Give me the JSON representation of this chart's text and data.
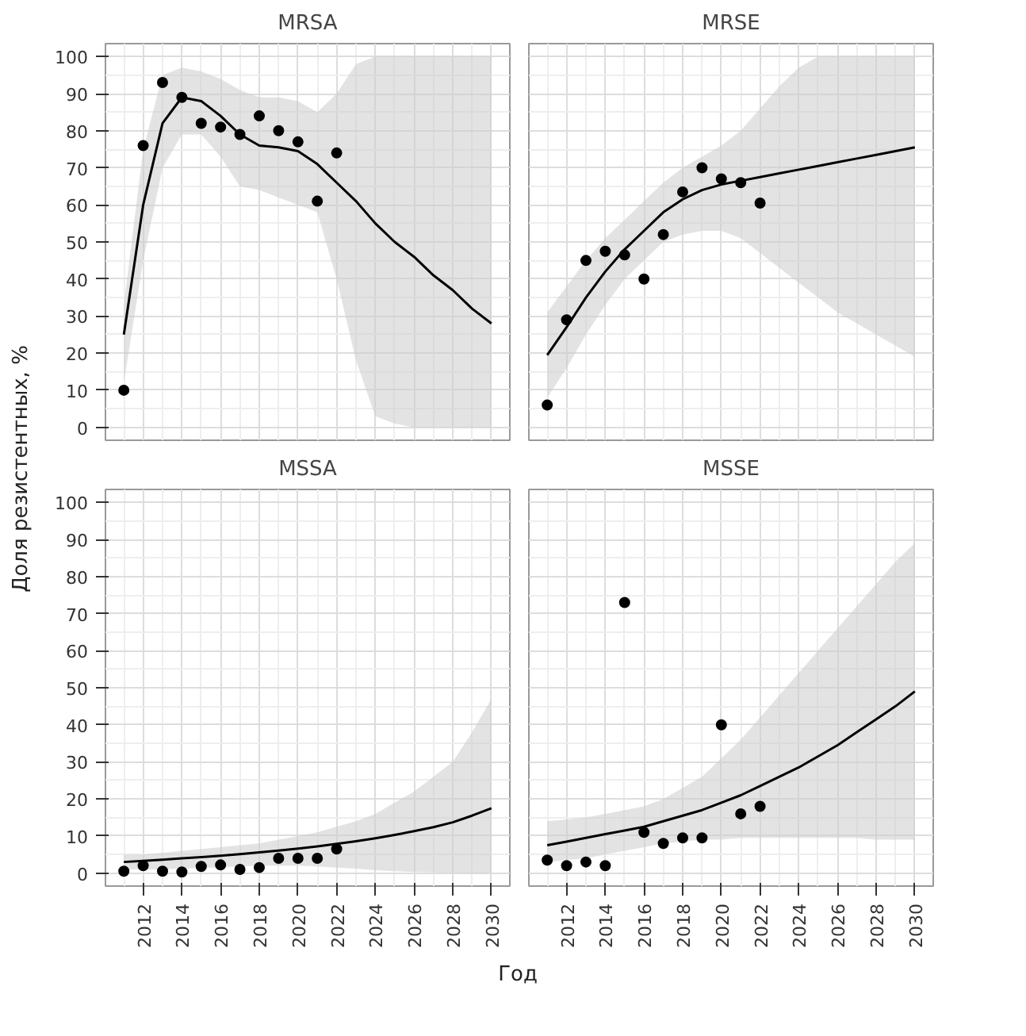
{
  "chart_data": [
    {
      "type": "scatter",
      "title": "MRSA",
      "ylabel": "Доля резистентных, %",
      "xlim": [
        2010.05,
        2030.95
      ],
      "ylim": [
        -3.5,
        103.5
      ],
      "xticks": [
        2012,
        2014,
        2016,
        2018,
        2020,
        2022,
        2024,
        2026,
        2028,
        2030
      ],
      "yticks": [
        0,
        10,
        20,
        30,
        40,
        50,
        60,
        70,
        80,
        90,
        100
      ],
      "grid": true,
      "marker": "circle",
      "line_style": "solid",
      "tick_labels": "y",
      "series": [
        {
          "color": "#000000",
          "x": [
            2011,
            2012,
            2013,
            2014,
            2015,
            2016,
            2017,
            2018,
            2019,
            2020,
            2021,
            2022
          ],
          "values": [
            10,
            76,
            93,
            89,
            82,
            81,
            79,
            84,
            80,
            77,
            61,
            74
          ]
        },
        {
          "type": "line",
          "color": "#000000",
          "x": [
            2011,
            2012,
            2013,
            2014,
            2015,
            2016,
            2017,
            2018,
            2019,
            2020,
            2021,
            2022,
            2023,
            2024,
            2025,
            2026,
            2027,
            2028,
            2029,
            2030
          ],
          "marker": "none",
          "values": [
            25,
            60,
            82,
            89,
            88,
            84,
            79,
            76,
            75.5,
            74.5,
            71,
            66,
            61,
            55,
            50,
            46,
            41,
            37,
            32,
            28
          ],
          "lower": [
            12,
            45,
            70,
            79,
            79,
            73,
            65,
            64,
            62,
            60,
            58,
            40,
            18,
            3,
            1,
            0,
            0,
            0,
            0,
            0
          ],
          "upper": [
            33,
            75,
            95,
            97,
            96,
            94,
            91,
            89,
            89,
            88,
            85,
            90,
            98,
            100,
            100,
            100,
            100,
            100,
            100,
            100
          ]
        }
      ]
    },
    {
      "type": "scatter",
      "title": "MRSE",
      "xlim": [
        2010.05,
        2030.95
      ],
      "ylim": [
        -3.5,
        103.5
      ],
      "xticks": [
        2012,
        2014,
        2016,
        2018,
        2020,
        2022,
        2024,
        2026,
        2028,
        2030
      ],
      "yticks": [
        0,
        10,
        20,
        30,
        40,
        50,
        60,
        70,
        80,
        90,
        100
      ],
      "grid": true,
      "marker": "circle",
      "line_style": "solid",
      "tick_labels": false,
      "series": [
        {
          "color": "#000000",
          "x": [
            2011,
            2012,
            2013,
            2014,
            2015,
            2016,
            2017,
            2018,
            2019,
            2020,
            2021,
            2022
          ],
          "values": [
            6,
            29,
            45,
            47.5,
            46.5,
            40,
            52,
            63.5,
            70,
            67,
            66,
            60.5
          ]
        },
        {
          "type": "line",
          "color": "#000000",
          "x": [
            2011,
            2012,
            2013,
            2014,
            2015,
            2016,
            2017,
            2018,
            2019,
            2020,
            2021,
            2022,
            2023,
            2024,
            2025,
            2026,
            2027,
            2028,
            2029,
            2030
          ],
          "marker": "none",
          "values": [
            19.5,
            27,
            35,
            42,
            48,
            53,
            58,
            61.5,
            64,
            65.5,
            66.5,
            67.5,
            68.5,
            69.5,
            70.5,
            71.5,
            72.5,
            73.5,
            74.5,
            75.5
          ],
          "lower": [
            8,
            16,
            25,
            33,
            40,
            45,
            50,
            52,
            53,
            53,
            51,
            47,
            43,
            39,
            35,
            31,
            28,
            25,
            22,
            19
          ],
          "upper": [
            31,
            38,
            45,
            51,
            56,
            61,
            66,
            70,
            73,
            76,
            80,
            86,
            92,
            97,
            100,
            100,
            100,
            100,
            100,
            100
          ]
        }
      ]
    },
    {
      "type": "scatter",
      "title": "MSSA",
      "xlabel": "Год",
      "xlim": [
        2010.05,
        2030.95
      ],
      "ylim": [
        -3.5,
        103.5
      ],
      "xticks": [
        2012,
        2014,
        2016,
        2018,
        2020,
        2022,
        2024,
        2026,
        2028,
        2030
      ],
      "yticks": [
        0,
        10,
        20,
        30,
        40,
        50,
        60,
        70,
        80,
        90,
        100
      ],
      "grid": true,
      "marker": "circle",
      "line_style": "solid",
      "series": [
        {
          "color": "#000000",
          "x": [
            2011,
            2012,
            2013,
            2014,
            2015,
            2016,
            2017,
            2018,
            2019,
            2020,
            2021,
            2022
          ],
          "values": [
            0.5,
            2,
            0.5,
            0.3,
            1.8,
            2.2,
            1,
            1.5,
            4,
            4,
            4,
            6.5
          ]
        },
        {
          "type": "line",
          "color": "#000000",
          "x": [
            2011,
            2012,
            2013,
            2014,
            2015,
            2016,
            2017,
            2018,
            2019,
            2020,
            2021,
            2022,
            2023,
            2024,
            2025,
            2026,
            2027,
            2028,
            2029,
            2030
          ],
          "marker": "none",
          "values": [
            3,
            3.3,
            3.6,
            4,
            4.3,
            4.7,
            5.1,
            5.6,
            6.1,
            6.6,
            7.2,
            7.9,
            8.6,
            9.4,
            10.3,
            11.3,
            12.4,
            13.7,
            15.5,
            17.5
          ],
          "lower": [
            1,
            1,
            1,
            1.2,
            1.4,
            1.6,
            1.8,
            2,
            2,
            2,
            1.8,
            1.5,
            1.2,
            0.8,
            0.5,
            0.3,
            0.2,
            0.1,
            0,
            0
          ],
          "upper": [
            5,
            5,
            5.5,
            6,
            6.5,
            7,
            7.5,
            8,
            9,
            10,
            11,
            12.5,
            14,
            16,
            19,
            22,
            26,
            30,
            38,
            47
          ]
        }
      ]
    },
    {
      "type": "scatter",
      "title": "MSSE",
      "xlim": [
        2010.05,
        2030.95
      ],
      "ylim": [
        -3.5,
        103.5
      ],
      "xticks": [
        2012,
        2014,
        2016,
        2018,
        2020,
        2022,
        2024,
        2026,
        2028,
        2030
      ],
      "yticks": [
        0,
        10,
        20,
        30,
        40,
        50,
        60,
        70,
        80,
        90,
        100
      ],
      "grid": true,
      "marker": "circle",
      "line_style": "solid",
      "tick_labels": "x",
      "series": [
        {
          "color": "#000000",
          "x": [
            2011,
            2012,
            2013,
            2014,
            2015,
            2016,
            2017,
            2018,
            2019,
            2020,
            2021,
            2022
          ],
          "values": [
            3.5,
            2,
            3,
            2,
            73,
            11,
            8,
            9.5,
            9.5,
            40,
            16,
            18
          ]
        },
        {
          "type": "line",
          "color": "#000000",
          "x": [
            2011,
            2012,
            2013,
            2014,
            2015,
            2016,
            2017,
            2018,
            2019,
            2020,
            2021,
            2022,
            2023,
            2024,
            2025,
            2026,
            2027,
            2028,
            2029,
            2030
          ],
          "marker": "none",
          "values": [
            7.5,
            8.5,
            9.5,
            10.5,
            11.5,
            12.5,
            14,
            15.5,
            17,
            19,
            21,
            23.5,
            26,
            28.5,
            31.5,
            34.5,
            38,
            41.5,
            45,
            49
          ],
          "lower": [
            3,
            3.5,
            4,
            5,
            6,
            7,
            8,
            8.5,
            9,
            9,
            9.5,
            9.5,
            9.5,
            9.5,
            9.5,
            9.5,
            9.5,
            9,
            9,
            9
          ],
          "upper": [
            14,
            14.5,
            15,
            16,
            17,
            18,
            20,
            23,
            26,
            31,
            36,
            42,
            48,
            54,
            60,
            66,
            72,
            78,
            84,
            89
          ]
        }
      ]
    }
  ]
}
